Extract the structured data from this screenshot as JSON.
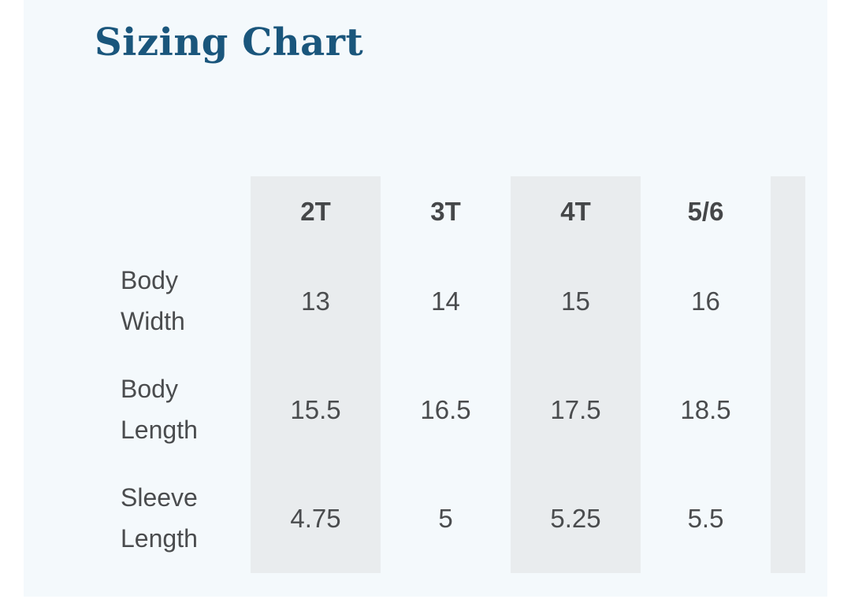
{
  "title": "Sizing Chart",
  "theme": {
    "page_background": "#ffffff",
    "panel_background": "#f4f9fc",
    "stripe_color": "#e9ecee",
    "title_color": "#1a567c",
    "text_color": "#4a4c4e"
  },
  "sizing_table": {
    "columns": [
      "2T",
      "3T",
      "4T",
      "5/6"
    ],
    "rows": [
      {
        "label": "Body Width",
        "values": [
          "13",
          "14",
          "15",
          "16"
        ]
      },
      {
        "label": "Body Length",
        "values": [
          "15.5",
          "16.5",
          "17.5",
          "18.5"
        ]
      },
      {
        "label": "Sleeve Length",
        "values": [
          "4.75",
          "5",
          "5.25",
          "5.5"
        ]
      }
    ]
  }
}
